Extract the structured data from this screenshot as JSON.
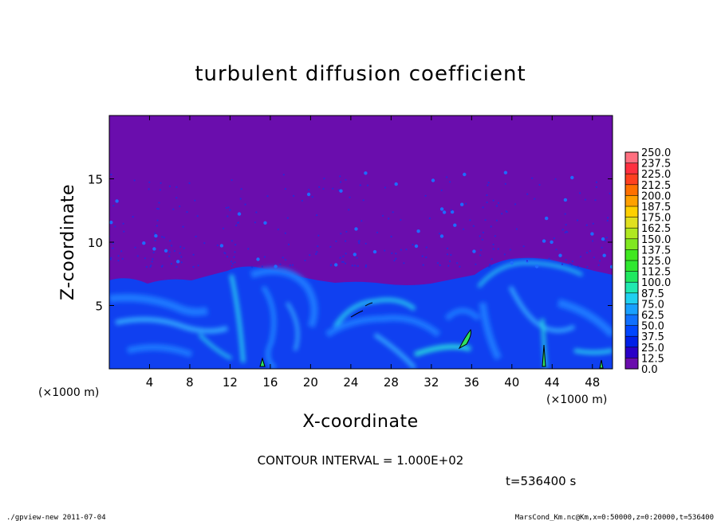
{
  "chart_data": {
    "type": "heatmap",
    "title": "turbulent diffusion coefficient",
    "xlabel": "X-coordinate",
    "ylabel": "Z-coordinate",
    "x_unit_label": "(×1000 m)",
    "y_unit_label": "(×1000 m)",
    "xlim": [
      0,
      50
    ],
    "ylim": [
      0,
      20
    ],
    "x_ticks": [
      4,
      8,
      12,
      16,
      20,
      24,
      28,
      32,
      36,
      40,
      44,
      48
    ],
    "x_tick_labels": [
      "4",
      "8",
      "12",
      "16",
      "20",
      "24",
      "28",
      "32",
      "36",
      "40",
      "44",
      "48"
    ],
    "y_ticks": [
      5,
      10,
      15
    ],
    "y_tick_labels": [
      "5",
      "10",
      "15"
    ],
    "colorbar": {
      "levels": [
        0.0,
        12.5,
        25.0,
        37.5,
        50.0,
        62.5,
        75.0,
        87.5,
        100.0,
        112.5,
        125.0,
        137.5,
        150.0,
        162.5,
        175.0,
        187.5,
        200.0,
        212.5,
        225.0,
        237.5,
        250.0
      ],
      "labels": [
        "0.0",
        "12.5",
        "25.0",
        "37.5",
        "50.0",
        "62.5",
        "75.0",
        "87.5",
        "100.0",
        "112.5",
        "125.0",
        "137.5",
        "150.0",
        "162.5",
        "175.0",
        "187.5",
        "200.0",
        "212.5",
        "225.0",
        "237.5",
        "250.0"
      ],
      "colors": [
        "#6a0dad",
        "#2a00c8",
        "#0020e8",
        "#0046ff",
        "#1070ff",
        "#18a0ff",
        "#20d0f0",
        "#20e8b0",
        "#20e860",
        "#30e830",
        "#40e820",
        "#80e820",
        "#b0e820",
        "#e0e020",
        "#ffd000",
        "#ffa000",
        "#ff7000",
        "#ff4020",
        "#ff3040",
        "#ff7080"
      ]
    },
    "background_color": "#6a0dad",
    "contour_interval_text": "CONTOUR INTERVAL = 1.000E+02",
    "time_text": "t=536400 s"
  },
  "footer": {
    "left": "./gpview-new   2011-07-04",
    "right": "MarsCond_Km.nc@Km,x=0:50000,z=0:20000,t=536400"
  }
}
